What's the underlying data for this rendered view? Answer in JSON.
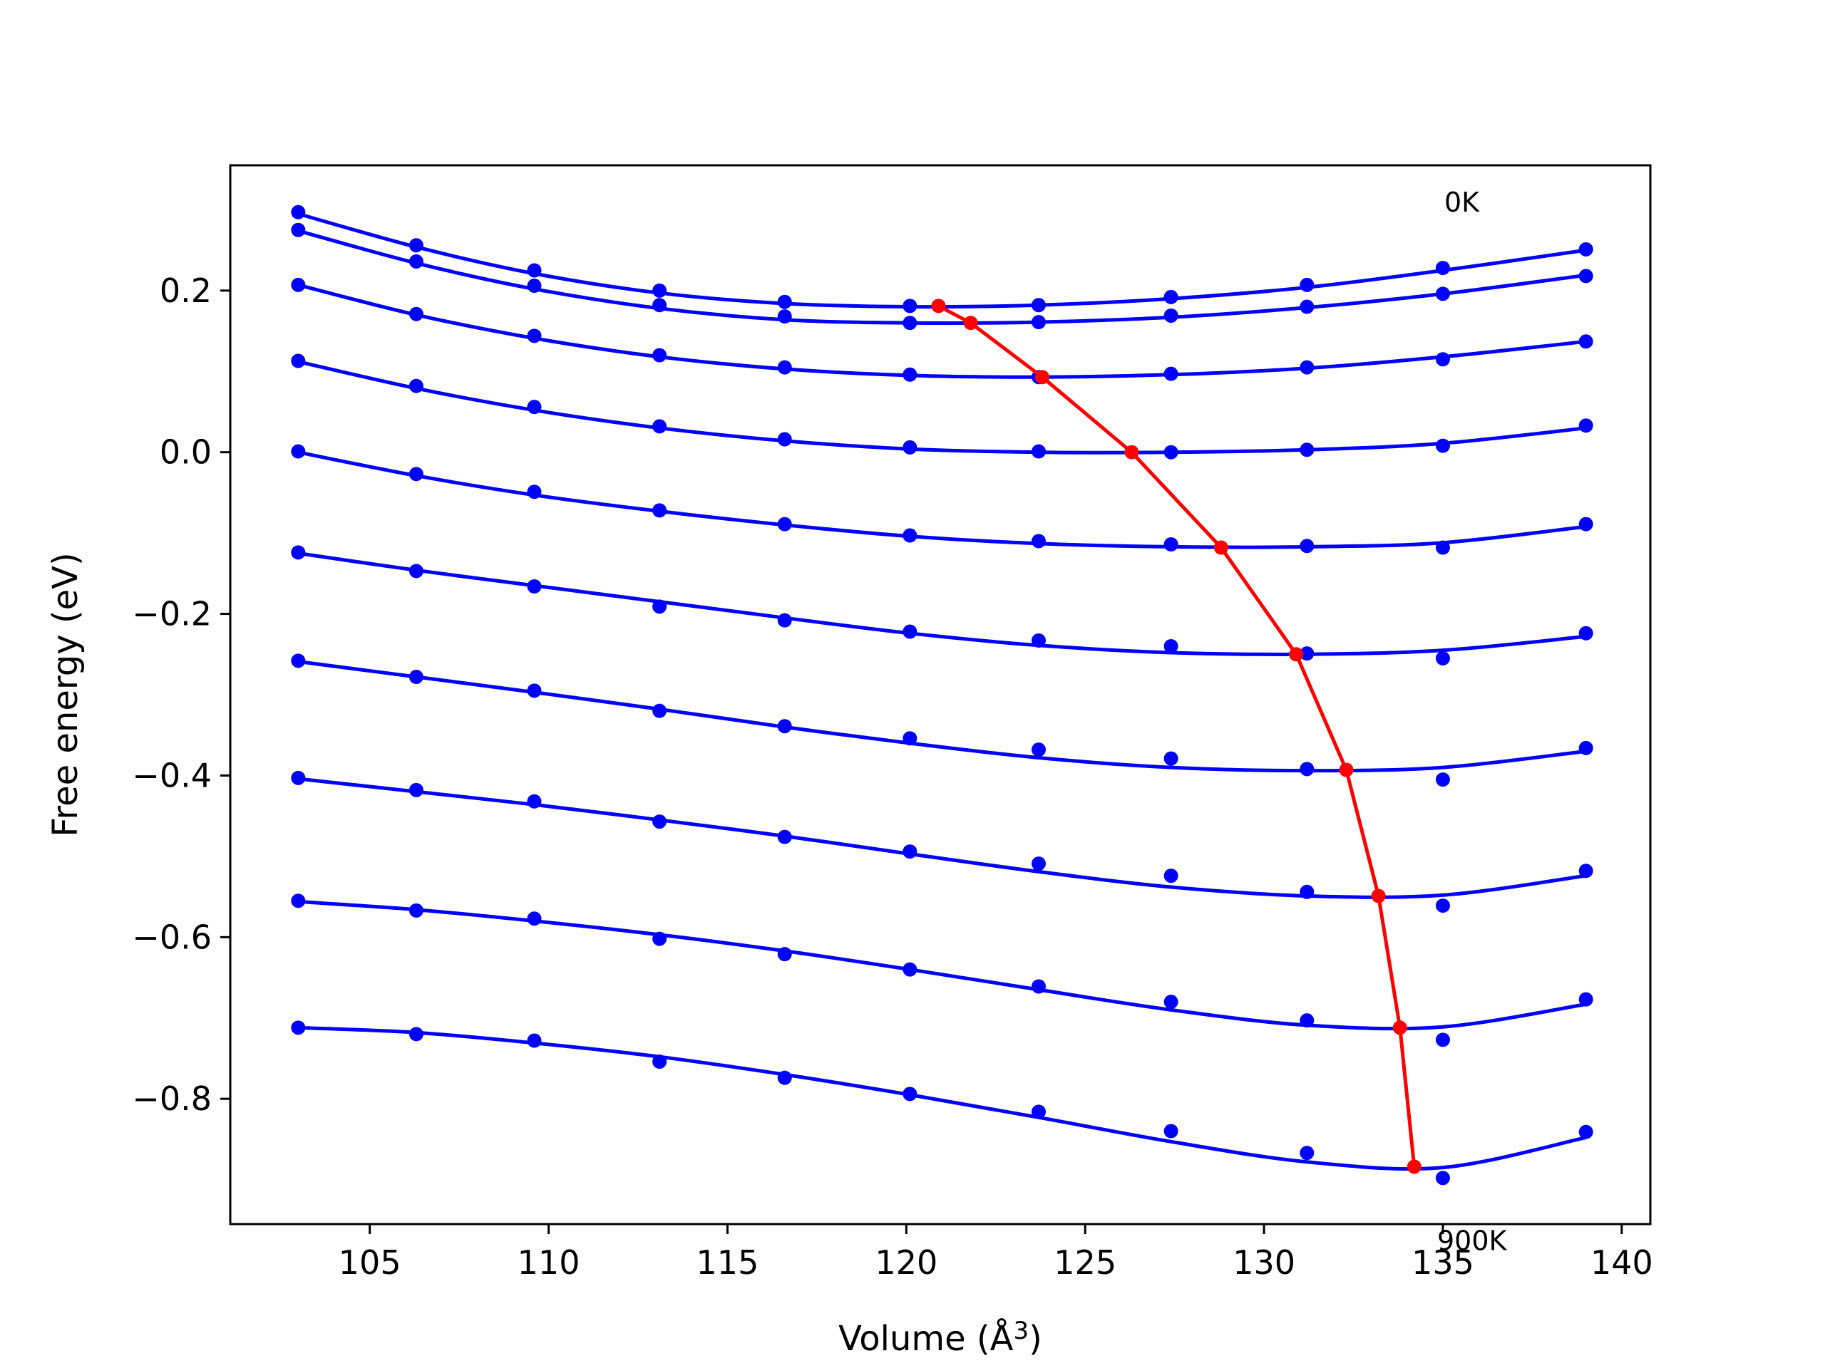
{
  "chart_data": {
    "type": "scatter",
    "xlabel": "Volume (Å",
    "xlabel_sup": "3",
    "xlabel_close": ")",
    "ylabel": "Free energy (eV)",
    "xlim": [
      101.1,
      140.8
    ],
    "ylim": [
      -0.955,
      0.355
    ],
    "xticks": [
      105,
      110,
      115,
      120,
      125,
      130,
      135,
      140
    ],
    "xtick_labels": [
      "105",
      "110",
      "115",
      "120",
      "125",
      "130",
      "135",
      "140"
    ],
    "yticks": [
      0.2,
      0.0,
      -0.2,
      -0.4,
      -0.6,
      -0.8
    ],
    "ytick_labels": [
      "0.2",
      "0.0",
      "−0.2",
      "−0.4",
      "−0.6",
      "−0.8"
    ],
    "grid": false,
    "annotations": [
      {
        "text": "0K",
        "x": 135.0,
        "y": 0.31
      },
      {
        "text": "900K",
        "x": 135.0,
        "y": -0.975
      }
    ],
    "x": [
      103.0,
      106.3,
      109.6,
      113.1,
      116.6,
      120.1,
      123.7,
      127.4,
      131.2,
      135.0,
      139.0
    ],
    "series": [
      {
        "color": "#0000ff",
        "points": [
          0.297,
          0.256,
          0.225,
          0.2,
          0.186,
          0.181,
          0.182,
          0.192,
          0.207,
          0.228,
          0.251
        ],
        "fit": [
          0.295,
          0.254,
          0.221,
          0.197,
          0.184,
          0.18,
          0.182,
          0.19,
          0.204,
          0.225,
          0.25
        ]
      },
      {
        "color": "#0000ff",
        "points": [
          0.275,
          0.236,
          0.206,
          0.182,
          0.168,
          0.16,
          0.161,
          0.169,
          0.18,
          0.196,
          0.218
        ],
        "fit": [
          0.274,
          0.234,
          0.202,
          0.178,
          0.164,
          0.16,
          0.161,
          0.167,
          0.179,
          0.196,
          0.219
        ]
      },
      {
        "color": "#0000ff",
        "points": [
          0.207,
          0.171,
          0.144,
          0.12,
          0.105,
          0.096,
          0.093,
          0.097,
          0.105,
          0.115,
          0.137
        ],
        "fit": [
          0.207,
          0.17,
          0.141,
          0.118,
          0.103,
          0.095,
          0.093,
          0.096,
          0.104,
          0.118,
          0.137
        ]
      },
      {
        "color": "#0000ff",
        "points": [
          0.113,
          0.082,
          0.056,
          0.032,
          0.016,
          0.006,
          0.001,
          0.0,
          0.003,
          0.008,
          0.033
        ],
        "fit": [
          0.112,
          0.079,
          0.052,
          0.03,
          0.014,
          0.004,
          0.0,
          0.0,
          0.003,
          0.011,
          0.03
        ]
      },
      {
        "color": "#0000ff",
        "points": [
          0.001,
          -0.027,
          -0.049,
          -0.072,
          -0.089,
          -0.103,
          -0.11,
          -0.114,
          -0.116,
          -0.118,
          -0.089
        ],
        "fit": [
          0.0,
          -0.029,
          -0.053,
          -0.073,
          -0.09,
          -0.104,
          -0.113,
          -0.117,
          -0.117,
          -0.112,
          -0.092
        ]
      },
      {
        "color": "#0000ff",
        "points": [
          -0.124,
          -0.147,
          -0.166,
          -0.191,
          -0.208,
          -0.222,
          -0.233,
          -0.24,
          -0.249,
          -0.255,
          -0.224
        ],
        "fit": [
          -0.125,
          -0.146,
          -0.165,
          -0.185,
          -0.205,
          -0.224,
          -0.239,
          -0.248,
          -0.25,
          -0.245,
          -0.228
        ]
      },
      {
        "color": "#0000ff",
        "points": [
          -0.258,
          -0.278,
          -0.295,
          -0.32,
          -0.339,
          -0.354,
          -0.368,
          -0.379,
          -0.392,
          -0.405,
          -0.366
        ],
        "fit": [
          -0.259,
          -0.278,
          -0.297,
          -0.318,
          -0.34,
          -0.36,
          -0.378,
          -0.39,
          -0.394,
          -0.39,
          -0.37
        ]
      },
      {
        "color": "#0000ff",
        "points": [
          -0.403,
          -0.418,
          -0.432,
          -0.457,
          -0.476,
          -0.494,
          -0.509,
          -0.524,
          -0.544,
          -0.561,
          -0.518
        ],
        "fit": [
          -0.404,
          -0.42,
          -0.436,
          -0.455,
          -0.475,
          -0.497,
          -0.519,
          -0.538,
          -0.549,
          -0.548,
          -0.524
        ]
      },
      {
        "color": "#0000ff",
        "points": [
          -0.555,
          -0.567,
          -0.577,
          -0.602,
          -0.621,
          -0.64,
          -0.661,
          -0.68,
          -0.703,
          -0.727,
          -0.677
        ],
        "fit": [
          -0.556,
          -0.566,
          -0.58,
          -0.597,
          -0.617,
          -0.64,
          -0.665,
          -0.69,
          -0.709,
          -0.711,
          -0.683
        ]
      },
      {
        "color": "#0000ff",
        "points": [
          -0.712,
          -0.72,
          -0.728,
          -0.754,
          -0.774,
          -0.794,
          -0.816,
          -0.84,
          -0.867,
          -0.898,
          -0.841
        ],
        "fit": [
          -0.712,
          -0.718,
          -0.731,
          -0.748,
          -0.77,
          -0.795,
          -0.823,
          -0.853,
          -0.878,
          -0.885,
          -0.848
        ]
      }
    ],
    "minima": {
      "color": "#ff0000",
      "x": [
        120.9,
        121.8,
        123.8,
        126.3,
        128.8,
        130.9,
        132.3,
        133.2,
        133.8,
        134.2
      ],
      "y": [
        0.181,
        0.16,
        0.093,
        0.0,
        -0.118,
        -0.25,
        -0.393,
        -0.549,
        -0.712,
        -0.884
      ]
    }
  }
}
